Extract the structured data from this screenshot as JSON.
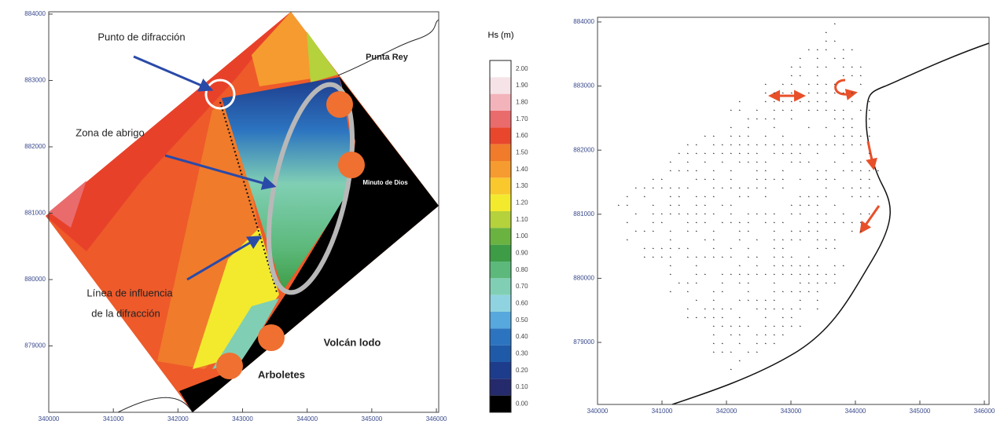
{
  "left_map": {
    "xlim": [
      340000,
      346036
    ],
    "ylim": [
      878000,
      884035
    ],
    "xticks": [
      340000,
      341000,
      342000,
      343000,
      344000,
      345000,
      346000
    ],
    "yticks": [
      879000,
      880000,
      881000,
      882000,
      883000,
      884000
    ],
    "annotations": {
      "diffraction_point": "Punto de difracción",
      "shelter_zone": "Zona de abrigo",
      "influence_line_1": "Línea de influencia",
      "influence_line_2": "de la difracción",
      "punta_rey": "Punta Rey",
      "minuto_de_dios": "Minuto de Dios",
      "volcan_lodo": "Volcán lodo",
      "arboletes": "Arboletes"
    }
  },
  "colorbar": {
    "title": "Hs (m)",
    "levels": [
      {
        "label": "2.00",
        "color": "#ffffff"
      },
      {
        "label": "1.90",
        "color": "#f6e3e7"
      },
      {
        "label": "1.80",
        "color": "#f3b3bb"
      },
      {
        "label": "1.70",
        "color": "#ea6b6c"
      },
      {
        "label": "1.60",
        "color": "#e8472d"
      },
      {
        "label": "1.50",
        "color": "#f07b2b"
      },
      {
        "label": "1.40",
        "color": "#f59b2f"
      },
      {
        "label": "1.30",
        "color": "#f8c82d"
      },
      {
        "label": "1.20",
        "color": "#f3ea2e"
      },
      {
        "label": "1.10",
        "color": "#b5d13c"
      },
      {
        "label": "1.00",
        "color": "#6ab340"
      },
      {
        "label": "0.90",
        "color": "#3e9c46"
      },
      {
        "label": "0.80",
        "color": "#5cb97b"
      },
      {
        "label": "0.70",
        "color": "#80cfb4"
      },
      {
        "label": "0.60",
        "color": "#90d3e0"
      },
      {
        "label": "0.50",
        "color": "#56a8dd"
      },
      {
        "label": "0.40",
        "color": "#2c74c0"
      },
      {
        "label": "0.30",
        "color": "#1f5aa8"
      },
      {
        "label": "0.20",
        "color": "#1e3c8c"
      },
      {
        "label": "0.10",
        "color": "#242a6b"
      },
      {
        "label": "0.00",
        "color": "#000000"
      }
    ]
  },
  "right_map": {
    "xlim": [
      340000,
      346073
    ],
    "ylim": [
      878032,
      884073
    ],
    "xticks": [
      340000,
      341000,
      342000,
      343000,
      344000,
      345000,
      346000
    ],
    "yticks": [
      879000,
      880000,
      881000,
      882000,
      883000,
      884000
    ]
  }
}
